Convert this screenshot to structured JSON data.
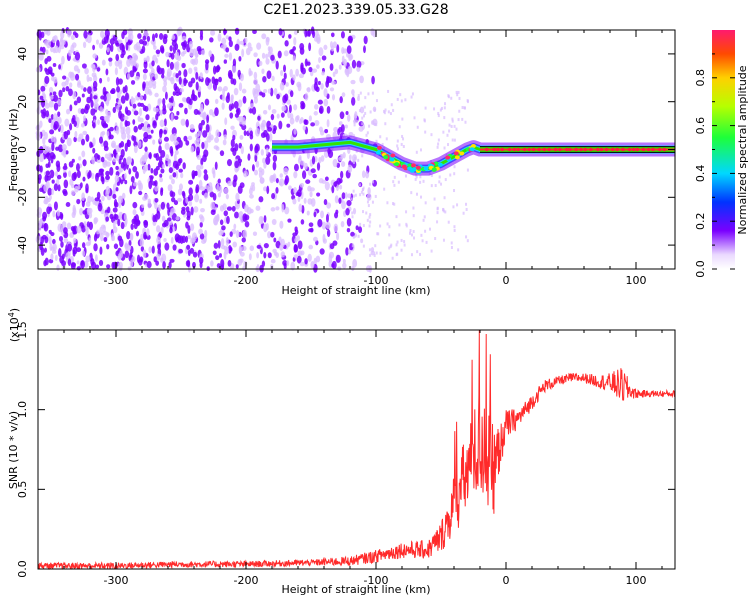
{
  "title": "C2E1.2023.339.05.33.G28",
  "colors": {
    "snr_line": "#ff2a2a",
    "track_core": "#ff2a2a",
    "track_green": "#36e100",
    "scatter_purple": "#7a00ff",
    "scatter_light": "#d9bcff",
    "black": "#000000"
  },
  "chart_data": [
    {
      "type": "heatmap",
      "name": "spectrogram",
      "xlabel": "Height of straight line (km)",
      "ylabel": "Frequency (Hz)",
      "xlim": [
        -360,
        130
      ],
      "ylim": [
        -50,
        50
      ],
      "xticks": [
        -300,
        -200,
        -100,
        0,
        100
      ],
      "xtick_labels": [
        "-300",
        "-200",
        "-100",
        "0",
        "100"
      ],
      "yticks": [
        -40,
        -20,
        0,
        20,
        40
      ],
      "ytick_labels": [
        "-40",
        "-20",
        "0",
        "20",
        "40"
      ],
      "colorbar": {
        "label": "Normalized spectral amplitude",
        "range": [
          0,
          1
        ],
        "ticks": [
          0.0,
          0.2,
          0.4,
          0.6,
          0.8
        ],
        "tick_labels": [
          "0.0",
          "0.2",
          "0.4",
          "0.6",
          "0.8"
        ]
      },
      "track": {
        "x": [
          -180,
          -160,
          -140,
          -120,
          -100,
          -90,
          -80,
          -70,
          -60,
          -50,
          -40,
          -30,
          -25,
          -20,
          -10,
          0,
          20,
          40,
          60,
          80,
          100,
          130
        ],
        "y": [
          1,
          1,
          2,
          3,
          0,
          -3,
          -6,
          -8,
          -8,
          -6,
          -3,
          0,
          1,
          0,
          0,
          0,
          0,
          0,
          0,
          0,
          0,
          0
        ]
      }
    },
    {
      "type": "line",
      "name": "snr",
      "xlabel": "Height of straight line (km)",
      "ylabel": "SNR (10 * v/v)",
      "scale_label": "(x10",
      "scale_exp": "4",
      "scale_close": ")",
      "xlim": [
        -360,
        130
      ],
      "ylim": [
        0,
        1.5
      ],
      "xticks": [
        -300,
        -200,
        -100,
        0,
        100
      ],
      "xtick_labels": [
        "-300",
        "-200",
        "-100",
        "0",
        "100"
      ],
      "yticks": [
        0,
        0.5,
        1.0,
        1.5
      ],
      "ytick_labels": [
        "0.0",
        "0.5",
        "1.0",
        "1.5"
      ],
      "series": [
        {
          "x": [
            -360,
            -300,
            -250,
            -200,
            -150,
            -120,
            -100,
            -80,
            -60,
            -50,
            -45,
            -40,
            -35,
            -30,
            -25,
            -20,
            -15,
            -10,
            -5,
            0,
            10,
            20,
            30,
            40,
            50,
            60,
            70,
            80,
            90,
            95,
            100,
            110,
            120,
            130
          ],
          "y": [
            0.02,
            0.02,
            0.03,
            0.03,
            0.04,
            0.05,
            0.08,
            0.12,
            0.12,
            0.2,
            0.3,
            0.4,
            0.5,
            0.6,
            0.7,
            0.8,
            0.7,
            0.6,
            0.75,
            0.9,
            0.95,
            1.05,
            1.15,
            1.18,
            1.2,
            1.2,
            1.18,
            1.17,
            1.15,
            1.12,
            1.1,
            1.1,
            1.1,
            1.1
          ],
          "noise": [
            0.02,
            0.02,
            0.02,
            0.02,
            0.02,
            0.03,
            0.04,
            0.05,
            0.06,
            0.1,
            0.14,
            0.2,
            0.25,
            0.25,
            0.3,
            0.35,
            0.35,
            0.3,
            0.15,
            0.1,
            0.06,
            0.05,
            0.04,
            0.03,
            0.03,
            0.03,
            0.04,
            0.06,
            0.12,
            0.06,
            0.03,
            0.02,
            0.02,
            0.02
          ]
        }
      ]
    }
  ]
}
